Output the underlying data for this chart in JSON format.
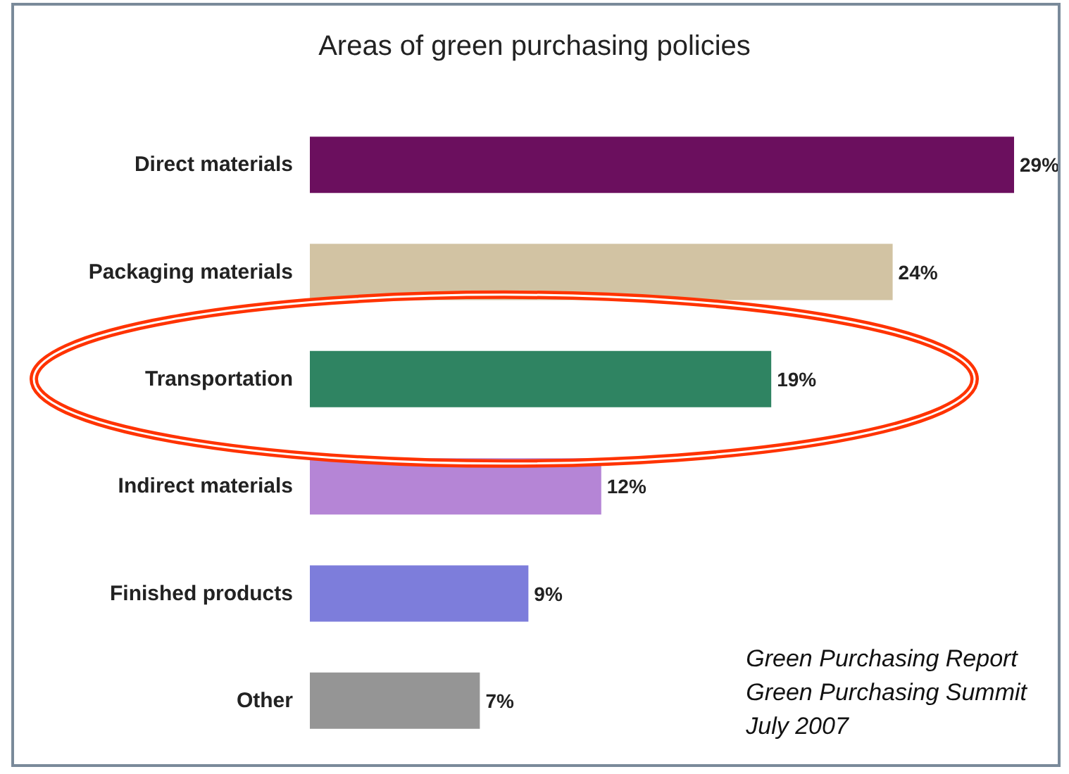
{
  "chart_data": {
    "type": "bar",
    "orientation": "horizontal",
    "title": "Areas of green purchasing policies",
    "categories": [
      "Direct materials",
      "Packaging materials",
      "Transportation",
      "Indirect materials",
      "Finished products",
      "Other"
    ],
    "values": [
      29,
      24,
      19,
      12,
      9,
      7
    ],
    "colors": [
      "#6b0f5e",
      "#d2c3a3",
      "#2f8462",
      "#b585d6",
      "#7d7ddb",
      "#959595"
    ],
    "value_labels": [
      "29%",
      "24%",
      "19%",
      "12%",
      "9%",
      "7%"
    ],
    "annotations": [
      "Green Purchasing Report",
      "Green Purchasing Summit",
      "July 2007"
    ]
  }
}
